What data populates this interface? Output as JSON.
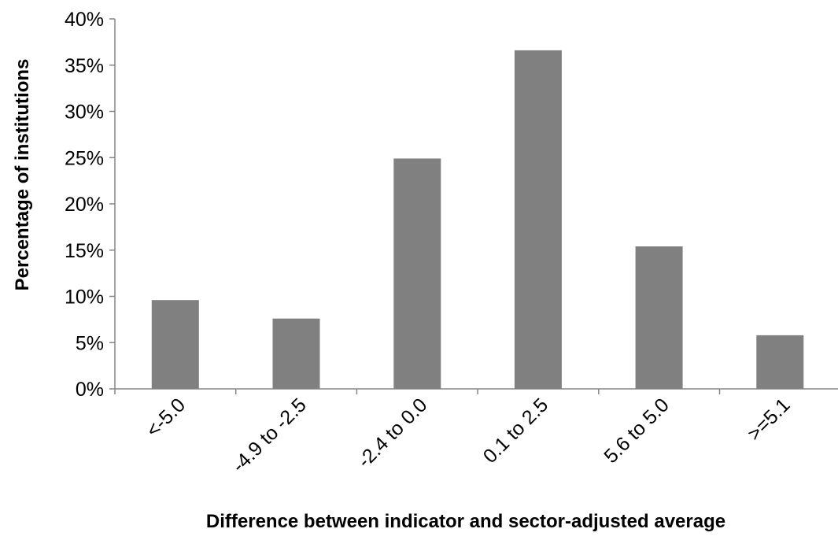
{
  "chart_data": {
    "type": "bar",
    "categories": [
      "<-5.0",
      "-4.9 to -2.5",
      "-2.4 to 0.0",
      "0.1 to 2.5",
      "5.6 to 5.0",
      ">=5.1"
    ],
    "values": [
      9.6,
      7.6,
      24.9,
      36.6,
      15.4,
      5.8
    ],
    "xlabel": "Difference between indicator and sector-adjusted average",
    "ylabel": "Percentage of institutions",
    "ylim": [
      0,
      40
    ],
    "yticks": [
      "0%",
      "5%",
      "10%",
      "15%",
      "20%",
      "25%",
      "30%",
      "35%",
      "40%"
    ],
    "ytick_values": [
      0,
      5,
      10,
      15,
      20,
      25,
      30,
      35,
      40
    ],
    "bar_color": "#808080",
    "axis_color": "#868686",
    "grid": false,
    "legend": "none"
  }
}
